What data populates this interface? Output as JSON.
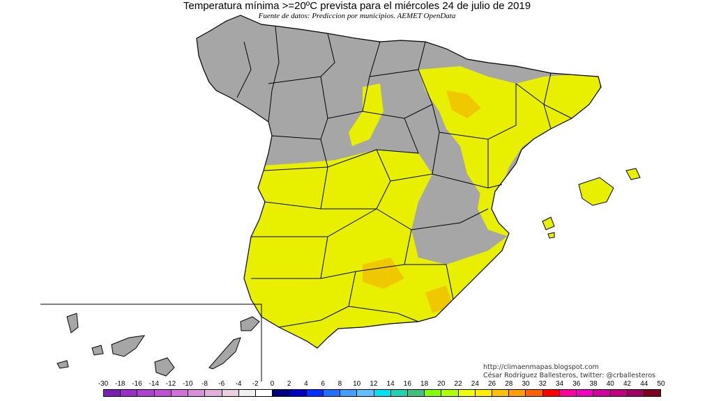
{
  "title": "Temperatura mínima >=20ºC prevista para el miércoles 24 de julio de 2019",
  "subtitle": "Fuente de datos: Prediccion por municipios. AEMET OpenData",
  "credits": {
    "blog": "http://climaenmapas.blogspot.com",
    "author": "César Rodríguez Ballesteros, twitter: @crballesteros"
  },
  "legend": {
    "labels": [
      "-30",
      "-18",
      "-16",
      "-14",
      "-12",
      "-10",
      "-8",
      "-6",
      "-4",
      "-2",
      "0",
      "2",
      "4",
      "6",
      "8",
      "10",
      "12",
      "14",
      "16",
      "18",
      "20",
      "22",
      "24",
      "26",
      "28",
      "30",
      "32",
      "34",
      "36",
      "38",
      "40",
      "42",
      "44",
      "50"
    ],
    "colors": [
      "#7a1fb0",
      "#9a2fc8",
      "#b040d0",
      "#c050d8",
      "#d070d8",
      "#d890d8",
      "#e0b0d8",
      "#e8d0e0",
      "#f0f0f0",
      "#ffffff",
      "#000080",
      "#0000c0",
      "#0030ff",
      "#2070ff",
      "#40a0ff",
      "#60c0ff",
      "#00e0f0",
      "#20d0b0",
      "#40c080",
      "#80ff00",
      "#b0ff00",
      "#f0ff00",
      "#ffee00",
      "#ffc000",
      "#ffa000",
      "#ff6000",
      "#ff0000",
      "#ff00a0",
      "#f000c0",
      "#d000a0",
      "#c00080",
      "#a00060",
      "#800020"
    ]
  },
  "map_colors": {
    "land": "#a6a6a6",
    "hot": "#e8f000",
    "hotter": "#f0c800",
    "sea": "#ffffff",
    "borders": "#000000"
  }
}
